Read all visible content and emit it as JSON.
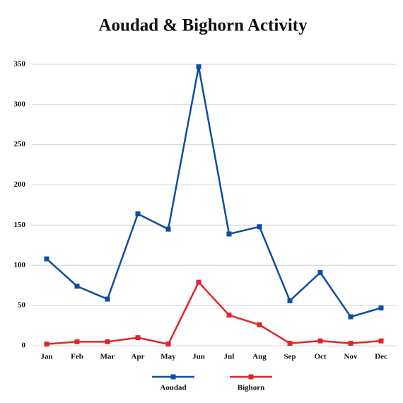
{
  "chart_data": {
    "type": "line",
    "title": "Aoudad & Bighorn Activity",
    "categories": [
      "Jan",
      "Feb",
      "Mar",
      "Apr",
      "May",
      "Jun",
      "Jul",
      "Aug",
      "Sep",
      "Oct",
      "Nov",
      "Dec"
    ],
    "series": [
      {
        "name": "Aoudad",
        "color": "#0b4ea2",
        "values": [
          108,
          74,
          58,
          164,
          145,
          347,
          139,
          148,
          56,
          91,
          36,
          47
        ]
      },
      {
        "name": "Bighorn",
        "color": "#e3242b",
        "values": [
          2,
          5,
          5,
          10,
          2,
          79,
          38,
          26,
          3,
          6,
          3,
          6
        ]
      }
    ],
    "ylim": [
      0,
      350
    ],
    "yticks": [
      0,
      50,
      100,
      150,
      200,
      250,
      300,
      350
    ],
    "grid": true,
    "legend": "bottom"
  }
}
